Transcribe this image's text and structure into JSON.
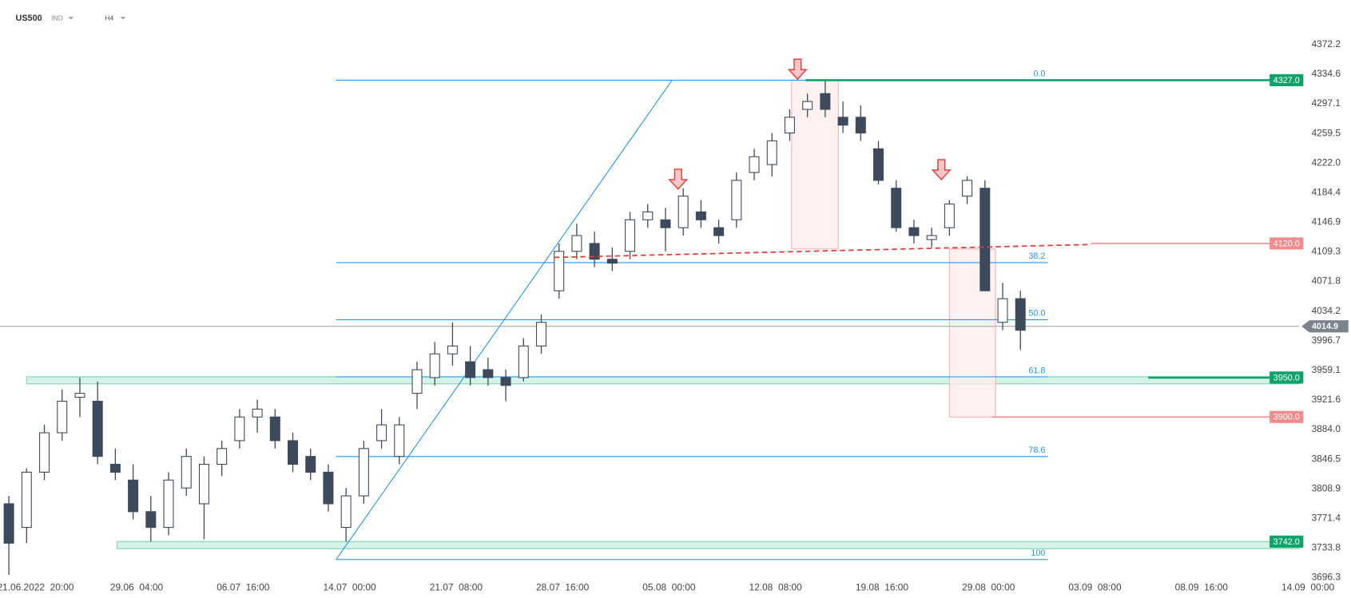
{
  "chart_data": {
    "type": "candlestick",
    "symbol": "US500",
    "market": "IND",
    "timeframe": "H4",
    "ylim": [
      3690.8,
      4395.2
    ],
    "yticks": [
      4372.2,
      4334.6,
      4297.1,
      4259.5,
      {
        "value": 4222,
        "label": "4222.0"
      },
      4184.4,
      4146.9,
      4109.3,
      4071.8,
      4034.2,
      3996.7,
      3959.1,
      3921.6,
      {
        "value": 3884,
        "label": "3884.0"
      },
      3846.5,
      3808.9,
      3771.4,
      3733.8,
      3696.3
    ],
    "xlim": [
      -0.5,
      72.7
    ],
    "xticks": [
      {
        "value": 1.5,
        "label": "21.06.2022  20:00"
      },
      {
        "value": 7.2,
        "label": "29.06  04:00"
      },
      {
        "value": 13.2,
        "label": "06.07  16:00"
      },
      {
        "value": 19.2,
        "label": "14.07  00:00"
      },
      {
        "value": 25.2,
        "label": "21.07  08:00"
      },
      {
        "value": 31.2,
        "label": "28.07  16:00"
      },
      {
        "value": 37.2,
        "label": "05.08  00:00"
      },
      {
        "value": 43.2,
        "label": "12.08  08:00"
      },
      {
        "value": 49.2,
        "label": "19.08  16:00"
      },
      {
        "value": 55.2,
        "label": "29.08  00:00"
      },
      {
        "value": 61.2,
        "label": "03.09  08:00"
      },
      {
        "value": 67.2,
        "label": "08.09  16:00"
      },
      {
        "value": 73.2,
        "label": "14.09  00:00"
      }
    ],
    "up_color": "#ffffff",
    "down_color": "#3d4a5c",
    "wick_color": "#3d4a5c",
    "open": [
      3790,
      3760,
      3830,
      3880,
      3925,
      3920,
      3840,
      3820,
      3780,
      3760,
      3810,
      3790,
      3840,
      3870,
      3900,
      3900,
      3870,
      3850,
      3830,
      3760,
      3800,
      3870,
      3850,
      3930,
      3950,
      3980,
      3970,
      3960,
      3950,
      3950,
      3990,
      4060,
      4110,
      4120,
      4100,
      4110,
      4150,
      4150,
      4140,
      4160,
      4140,
      4150,
      4210,
      4220,
      4260,
      4290,
      4310,
      4280,
      4280,
      4240,
      4190,
      4140,
      4125,
      4140,
      4180,
      4190,
      4020,
      4050
    ],
    "high": [
      3800,
      3835,
      3890,
      3935,
      3950,
      3945,
      3860,
      3840,
      3800,
      3830,
      3860,
      3850,
      3870,
      3910,
      3922,
      3910,
      3880,
      3860,
      3840,
      3810,
      3870,
      3910,
      3900,
      3970,
      3995,
      4020,
      3990,
      3975,
      3960,
      4000,
      4030,
      4120,
      4145,
      4135,
      4115,
      4160,
      4170,
      4165,
      4190,
      4175,
      4150,
      4210,
      4240,
      4260,
      4290,
      4310,
      4327,
      4300,
      4295,
      4250,
      4200,
      4150,
      4140,
      4175,
      4205,
      4200,
      4070,
      4060
    ],
    "low": [
      3700,
      3740,
      3820,
      3870,
      3900,
      3840,
      3820,
      3770,
      3742,
      3750,
      3800,
      3745,
      3825,
      3860,
      3880,
      3860,
      3830,
      3820,
      3780,
      3742,
      3790,
      3860,
      3840,
      3910,
      3940,
      3965,
      3940,
      3940,
      3920,
      3945,
      3980,
      4050,
      4100,
      4090,
      4085,
      4100,
      4140,
      4110,
      4130,
      4140,
      4120,
      4140,
      4200,
      4205,
      4250,
      4280,
      4280,
      4260,
      4250,
      4195,
      4135,
      4120,
      4115,
      4130,
      4170,
      4060,
      4010,
      3985
    ],
    "close": [
      3740,
      3830,
      3880,
      3920,
      3930,
      3850,
      3830,
      3780,
      3760,
      3820,
      3850,
      3840,
      3860,
      3900,
      3910,
      3870,
      3840,
      3830,
      3790,
      3800,
      3860,
      3890,
      3890,
      3960,
      3980,
      3990,
      3950,
      3950,
      3940,
      3990,
      4020,
      4110,
      4130,
      4100,
      4095,
      4150,
      4160,
      4140,
      4180,
      4150,
      4130,
      4200,
      4230,
      4250,
      4280,
      4300,
      4290,
      4270,
      4260,
      4200,
      4140,
      4130,
      4130,
      4170,
      4200,
      4060,
      4050,
      4010
    ],
    "current_price": 4014.9,
    "fib": {
      "x": [
        18.44,
        58.55
      ],
      "color": "#2196f3",
      "levels": [
        {
          "price": 4327,
          "text": "0.0"
        },
        {
          "price": 4095.7,
          "text": "38.2"
        },
        {
          "price": 4023.3,
          "text": "50.0"
        },
        {
          "price": 3950.9,
          "text": "61.8"
        },
        {
          "price": 3849.9,
          "text": "78.6"
        },
        {
          "price": 3719.3,
          "text": "100"
        }
      ]
    },
    "fib_trend": {
      "x": [
        18.44,
        37.37
      ],
      "y": [
        3719.3,
        4327
      ]
    },
    "trendline": {
      "x": [
        30.73,
        60.99
      ],
      "y": [
        4102.3,
        4118.7
      ],
      "color": "#e53935"
    },
    "levels": [
      {
        "value": 4327,
        "label": "4327.0",
        "color": "#0ea36b",
        "x_start": 44.9
      },
      {
        "value": 4120,
        "label": "4120.0",
        "color": "#f08c8c",
        "x_start": 60.99
      },
      {
        "value": 3950,
        "label": "3950.0",
        "color": "#0ea36b",
        "x_start": 64.2
      },
      {
        "value": 3900,
        "label": "3900.0",
        "color": "#f08c8c",
        "x_start": 55.4
      },
      {
        "value": 3742,
        "label": "3742.0",
        "color": "#0ea36b",
        "x_start": 72.7
      }
    ],
    "zones": [
      {
        "low": 3942,
        "high": 3951,
        "x_start": 1.0
      },
      {
        "low": 3733,
        "high": 3742,
        "x_start": 6.1
      }
    ],
    "boxes": [
      {
        "x": [
          44.11,
          46.74
        ],
        "y": [
          4113,
          4327
        ]
      },
      {
        "x": [
          53.0,
          55.6
        ],
        "y": [
          3900,
          4113
        ]
      }
    ]
  }
}
